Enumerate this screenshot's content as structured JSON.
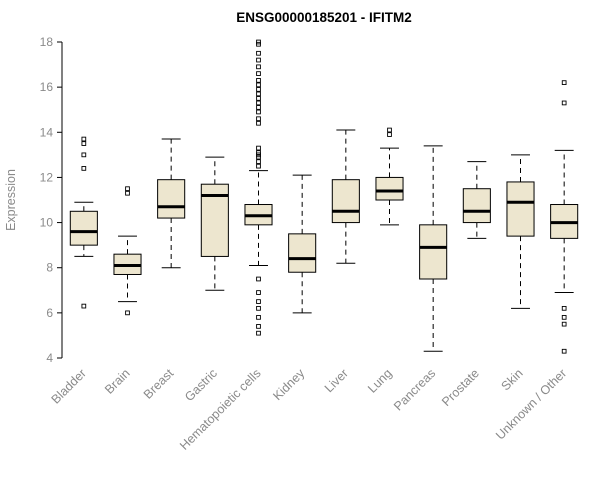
{
  "title": "ENSG00000185201 - IFITM2",
  "chart_data": {
    "type": "boxplot",
    "title": "ENSG00000185201 - IFITM2",
    "xlabel": "",
    "ylabel": "Expression",
    "ylim": [
      4,
      18
    ],
    "yticks": [
      4,
      6,
      8,
      10,
      12,
      14,
      16,
      18
    ],
    "grid": false,
    "box_fill": "#EDE6CF",
    "line_color": "#000000",
    "categories": [
      "Bladder",
      "Brain",
      "Breast",
      "Gastric",
      "Hematopoietic cells",
      "Kidney",
      "Liver",
      "Lung",
      "Pancreas",
      "Prostate",
      "Skin",
      "Unknown / Other"
    ],
    "series": [
      {
        "name": "Bladder",
        "whisker_low": 8.5,
        "q1": 9.0,
        "median": 9.6,
        "q3": 10.5,
        "whisker_high": 10.9,
        "outliers": [
          6.3,
          12.4,
          13.0,
          13.5,
          13.7
        ]
      },
      {
        "name": "Brain",
        "whisker_low": 6.5,
        "q1": 7.7,
        "median": 8.1,
        "q3": 8.6,
        "whisker_high": 9.4,
        "outliers": [
          6.0,
          11.3,
          11.5
        ]
      },
      {
        "name": "Breast",
        "whisker_low": 8.0,
        "q1": 10.2,
        "median": 10.7,
        "q3": 11.9,
        "whisker_high": 13.7,
        "outliers": []
      },
      {
        "name": "Gastric",
        "whisker_low": 7.0,
        "q1": 8.5,
        "median": 11.2,
        "q3": 11.7,
        "whisker_high": 12.9,
        "outliers": []
      },
      {
        "name": "Hematopoietic cells",
        "whisker_low": 8.1,
        "q1": 9.9,
        "median": 10.3,
        "q3": 10.8,
        "whisker_high": 12.3,
        "outliers": [
          5.1,
          5.4,
          5.8,
          6.2,
          6.5,
          6.9,
          7.5,
          12.5,
          12.7,
          12.9,
          13.0,
          13.1,
          13.3,
          14.4,
          14.6,
          14.9,
          15.1,
          15.3,
          15.5,
          15.7,
          15.9,
          16.1,
          16.3,
          16.6,
          16.9,
          17.2,
          17.5,
          17.9,
          18.0
        ]
      },
      {
        "name": "Kidney",
        "whisker_low": 6.0,
        "q1": 7.8,
        "median": 8.4,
        "q3": 9.5,
        "whisker_high": 12.1,
        "outliers": []
      },
      {
        "name": "Liver",
        "whisker_low": 8.2,
        "q1": 10.0,
        "median": 10.5,
        "q3": 11.9,
        "whisker_high": 14.1,
        "outliers": []
      },
      {
        "name": "Lung",
        "whisker_low": 9.9,
        "q1": 11.0,
        "median": 11.4,
        "q3": 12.0,
        "whisker_high": 13.3,
        "outliers": [
          13.9,
          14.1
        ]
      },
      {
        "name": "Pancreas",
        "whisker_low": 4.3,
        "q1": 7.5,
        "median": 8.9,
        "q3": 9.9,
        "whisker_high": 13.4,
        "outliers": []
      },
      {
        "name": "Prostate",
        "whisker_low": 9.3,
        "q1": 10.0,
        "median": 10.5,
        "q3": 11.5,
        "whisker_high": 12.7,
        "outliers": []
      },
      {
        "name": "Skin",
        "whisker_low": 6.2,
        "q1": 9.4,
        "median": 10.9,
        "q3": 11.8,
        "whisker_high": 13.0,
        "outliers": []
      },
      {
        "name": "Unknown / Other",
        "whisker_low": 6.9,
        "q1": 9.3,
        "median": 10.0,
        "q3": 10.8,
        "whisker_high": 13.2,
        "outliers": [
          4.3,
          5.5,
          5.8,
          6.2,
          15.3,
          16.2
        ]
      }
    ]
  }
}
